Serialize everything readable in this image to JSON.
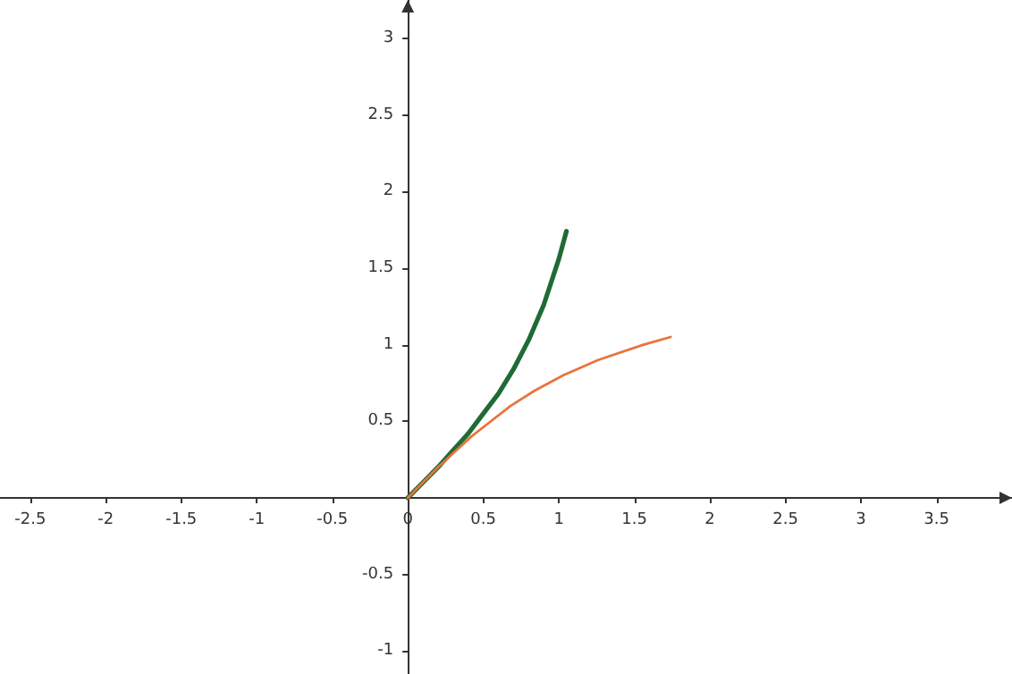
{
  "chart_data": {
    "type": "line",
    "marker": "none",
    "xlim": [
      -2.7,
      4
    ],
    "ylim": [
      -1.15,
      3.25
    ],
    "xticks": [
      -2.5,
      -2,
      -1.5,
      -1,
      -0.5,
      0,
      0.5,
      1,
      1.5,
      2,
      2.5,
      3,
      3.5
    ],
    "yticks": [
      -1,
      -0.5,
      {
        "value": 0,
        "label": null
      },
      0.5,
      1,
      1.5,
      2,
      2.5,
      3
    ],
    "series": [
      {
        "color": "#1f6b35",
        "x": [
          0,
          0.1,
          0.2,
          0.3,
          0.4,
          0.5,
          0.6,
          0.7,
          0.8,
          0.9,
          1,
          1.05
        ],
        "values": [
          0,
          0.1,
          0.2,
          0.31,
          0.42,
          0.55,
          0.68,
          0.84,
          1.03,
          1.26,
          1.56,
          1.74
        ]
      },
      {
        "color": "#e8743b",
        "x": [
          0,
          0.1,
          0.2,
          0.31,
          0.42,
          0.55,
          0.68,
          0.84,
          1.03,
          1.26,
          1.56,
          1.74
        ],
        "values": [
          0,
          0.1,
          0.2,
          0.3,
          0.4,
          0.5,
          0.6,
          0.7,
          0.8,
          0.9,
          1,
          1.05
        ]
      }
    ]
  }
}
